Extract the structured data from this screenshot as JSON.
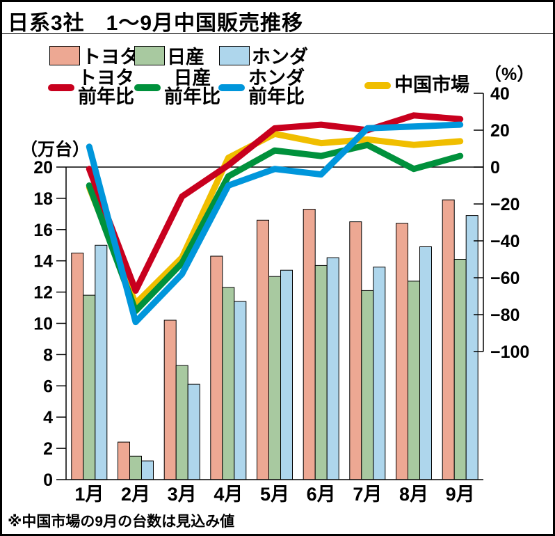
{
  "title": "日系3社　1〜9月中国販売推移",
  "footnote": "※中国市場の9月の台数は見込み値",
  "axes": {
    "left_unit": "（万台）",
    "right_unit": "（%）"
  },
  "legend": {
    "bars": [
      {
        "label": "トヨタ",
        "color": "#EDA893"
      },
      {
        "label": "日産",
        "color": "#A8C9A0"
      },
      {
        "label": "ホンダ",
        "color": "#AED6EC"
      }
    ],
    "lines": [
      {
        "label": "トヨタ",
        "label2": "前年比",
        "color": "#C8001E"
      },
      {
        "label": "日産",
        "label2": "前年比",
        "color": "#00913C"
      },
      {
        "label": "ホンダ",
        "label2": "前年比",
        "color": "#0096DB"
      },
      {
        "label": "中国市場",
        "label2": "",
        "color": "#F0BE00"
      }
    ]
  },
  "chart_data": {
    "type": "combo-bar-line",
    "categories": [
      "1月",
      "2月",
      "3月",
      "4月",
      "5月",
      "6月",
      "7月",
      "8月",
      "9月"
    ],
    "bar_unit": "万台",
    "bar_series": [
      {
        "name": "トヨタ",
        "color": "#EDA893",
        "values": [
          14.5,
          2.4,
          10.2,
          14.3,
          16.6,
          17.3,
          16.5,
          16.4,
          17.9
        ]
      },
      {
        "name": "日産",
        "color": "#A8C9A0",
        "values": [
          11.8,
          1.5,
          7.3,
          12.3,
          13.0,
          13.7,
          12.1,
          12.7,
          14.1
        ]
      },
      {
        "name": "ホンダ",
        "color": "#AED6EC",
        "values": [
          15.0,
          1.2,
          6.1,
          11.4,
          13.4,
          14.2,
          13.6,
          14.9,
          16.9
        ]
      }
    ],
    "line_unit": "%",
    "line_series": [
      {
        "name": "中国市場",
        "color": "#F0BE00",
        "values": [
          -11,
          -74,
          -49,
          5,
          18,
          13,
          15,
          12,
          14
        ]
      },
      {
        "name": "日産前年比",
        "color": "#00913C",
        "values": [
          -10,
          -78,
          -52,
          -5,
          9,
          6,
          12,
          -1,
          6
        ]
      },
      {
        "name": "トヨタ前年比",
        "color": "#C8001E",
        "values": [
          -1,
          -67,
          -16,
          1,
          21,
          23,
          20,
          28,
          26
        ]
      },
      {
        "name": "ホンダ前年比",
        "color": "#0096DB",
        "values": [
          11,
          -84,
          -58,
          -10,
          -1,
          -4,
          21,
          22,
          23
        ]
      }
    ],
    "left_axis": {
      "label": "（万台）",
      "ticks": [
        20,
        18,
        16,
        14,
        12,
        10,
        8,
        6,
        4,
        2,
        0
      ],
      "range": [
        0,
        20
      ]
    },
    "right_axis": {
      "label": "（%）",
      "ticks": [
        40,
        20,
        0,
        -20,
        -40,
        -60,
        -80,
        -100
      ],
      "range": [
        -100,
        40
      ]
    },
    "grid": "single zero line at right-axis 0 / left-axis 20"
  }
}
